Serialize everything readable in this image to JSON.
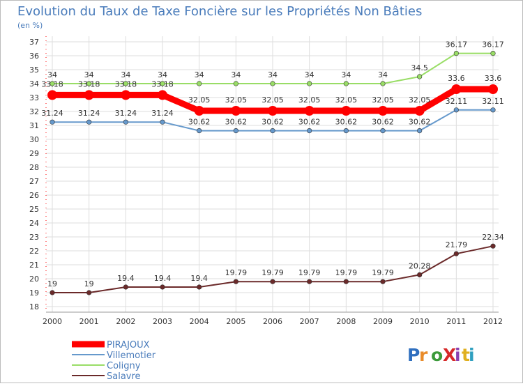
{
  "chart_data": {
    "type": "line",
    "title": "Evolution du Taux de Taxe Foncière sur les Propriétés Non Bâties",
    "ylabel": "(en %)",
    "xlabel": "",
    "x": [
      "2000",
      "2001",
      "2002",
      "2003",
      "2004",
      "2005",
      "2006",
      "2007",
      "2008",
      "2009",
      "2010",
      "2011",
      "2012"
    ],
    "ylim": [
      18,
      37
    ],
    "yticks": [
      "18",
      "19",
      "20",
      "21",
      "22",
      "23",
      "24",
      "25",
      "26",
      "27",
      "28",
      "29",
      "30",
      "31",
      "32",
      "33",
      "34",
      "35",
      "36",
      "37"
    ],
    "grid": true,
    "legend_position": "bottom-left",
    "series": [
      {
        "name": "PIRAJOUX",
        "color": "#ff0000",
        "values": [
          33.18,
          33.18,
          33.18,
          33.18,
          32.05,
          32.05,
          32.05,
          32.05,
          32.05,
          32.05,
          32.05,
          33.6,
          33.6
        ],
        "labels": [
          "33.18",
          "33.18",
          "33.18",
          "33.18",
          "32.05",
          "32.05",
          "32.05",
          "32.05",
          "32.05",
          "32.05",
          "32.05",
          "33.6",
          "33.6"
        ]
      },
      {
        "name": "Villemotier",
        "color": "#6699cc",
        "values": [
          31.24,
          31.24,
          31.24,
          31.24,
          30.62,
          30.62,
          30.62,
          30.62,
          30.62,
          30.62,
          30.62,
          32.11,
          32.11
        ],
        "labels": [
          "31.24",
          "31.24",
          "31.24",
          "31.24",
          "30.62",
          "30.62",
          "30.62",
          "30.62",
          "30.62",
          "30.62",
          "30.62",
          "32.11",
          "32.11"
        ]
      },
      {
        "name": "Coligny",
        "color": "#99dd66",
        "values": [
          34,
          34,
          34,
          34,
          34,
          34,
          34,
          34,
          34,
          34,
          34.5,
          36.17,
          36.17
        ],
        "labels": [
          "34",
          "34",
          "34",
          "34",
          "34",
          "34",
          "34",
          "34",
          "34",
          "34",
          "34.5",
          "36.17",
          "36.17"
        ]
      },
      {
        "name": "Salavre",
        "color": "#6b2a2a",
        "values": [
          19,
          19,
          19.4,
          19.4,
          19.4,
          19.79,
          19.79,
          19.79,
          19.79,
          19.79,
          20.28,
          21.79,
          22.34
        ],
        "labels": [
          "19",
          "19",
          "19.4",
          "19.4",
          "19.4",
          "19.79",
          "19.79",
          "19.79",
          "19.79",
          "19.79",
          "20.28",
          "21.79",
          "22.34"
        ]
      }
    ]
  },
  "watermark": {
    "text": "ProXiti"
  },
  "colors": {
    "title": "#4a7cbb",
    "subtitle": "#4a7cbb",
    "grid": "#dddddd",
    "axis_text": "#333333",
    "legend_text": "#4a7cbb",
    "axis_line": "#ff0000"
  }
}
